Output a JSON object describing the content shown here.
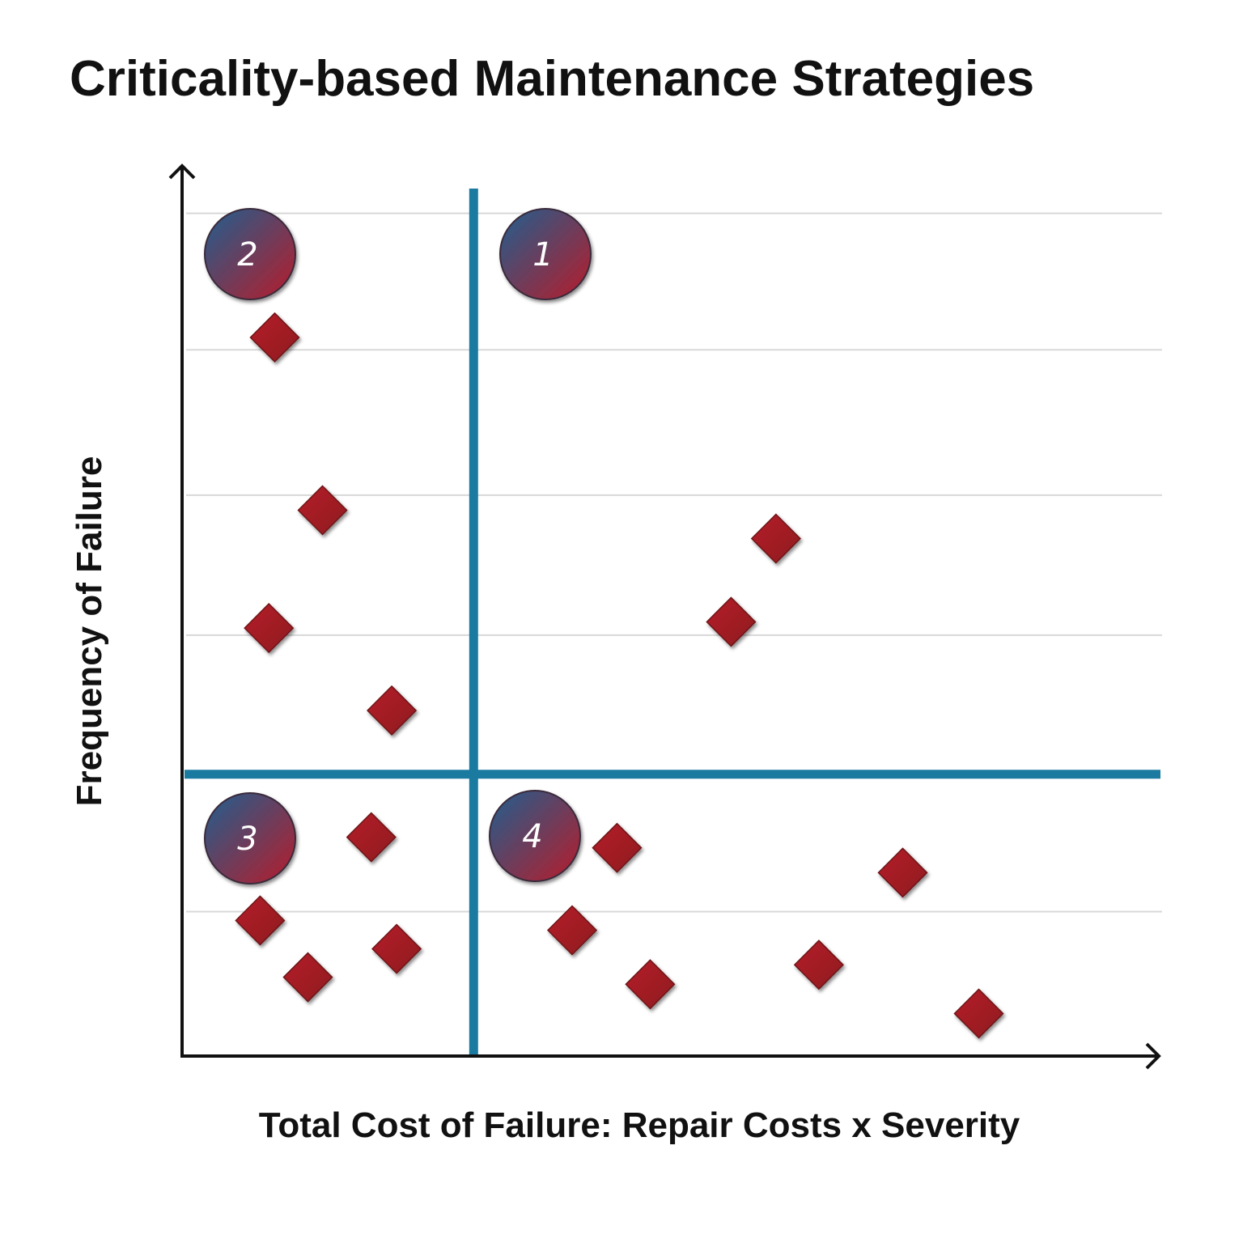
{
  "chart_data": {
    "type": "scatter",
    "title": "Criticality-based Maintenance Strategies",
    "xlabel": "Total Cost of Failure: Repair Costs x Severity",
    "ylabel": "Frequency of Failure",
    "xlim": [
      0,
      100
    ],
    "ylim": [
      0,
      100
    ],
    "grid": true,
    "gridlines_y": [
      16.3,
      47.5,
      63.3,
      79.7,
      95.1
    ],
    "dividers": {
      "x": 29.9,
      "y": 31.8
    },
    "quadrant_labels": [
      "1",
      "2",
      "3",
      "4"
    ],
    "points": [
      {
        "x": 9.5,
        "y": 81.1
      },
      {
        "x": 14.4,
        "y": 61.6
      },
      {
        "x": 8.9,
        "y": 48.3
      },
      {
        "x": 21.5,
        "y": 39.0
      },
      {
        "x": 19.4,
        "y": 24.7
      },
      {
        "x": 8.0,
        "y": 15.3
      },
      {
        "x": 12.9,
        "y": 8.9
      },
      {
        "x": 22.0,
        "y": 12.1
      },
      {
        "x": 60.9,
        "y": 58.4
      },
      {
        "x": 56.3,
        "y": 49.0
      },
      {
        "x": 44.6,
        "y": 23.5
      },
      {
        "x": 40.0,
        "y": 14.2
      },
      {
        "x": 48.0,
        "y": 8.1
      },
      {
        "x": 65.3,
        "y": 10.3
      },
      {
        "x": 73.9,
        "y": 20.7
      },
      {
        "x": 81.7,
        "y": 4.8
      }
    ],
    "colors": {
      "marker": "#a01c24",
      "divider": "#1a7aa0",
      "grid": "#d8d8d8",
      "badge_start": "#1f5f8f",
      "badge_end": "#b81c2a"
    }
  }
}
